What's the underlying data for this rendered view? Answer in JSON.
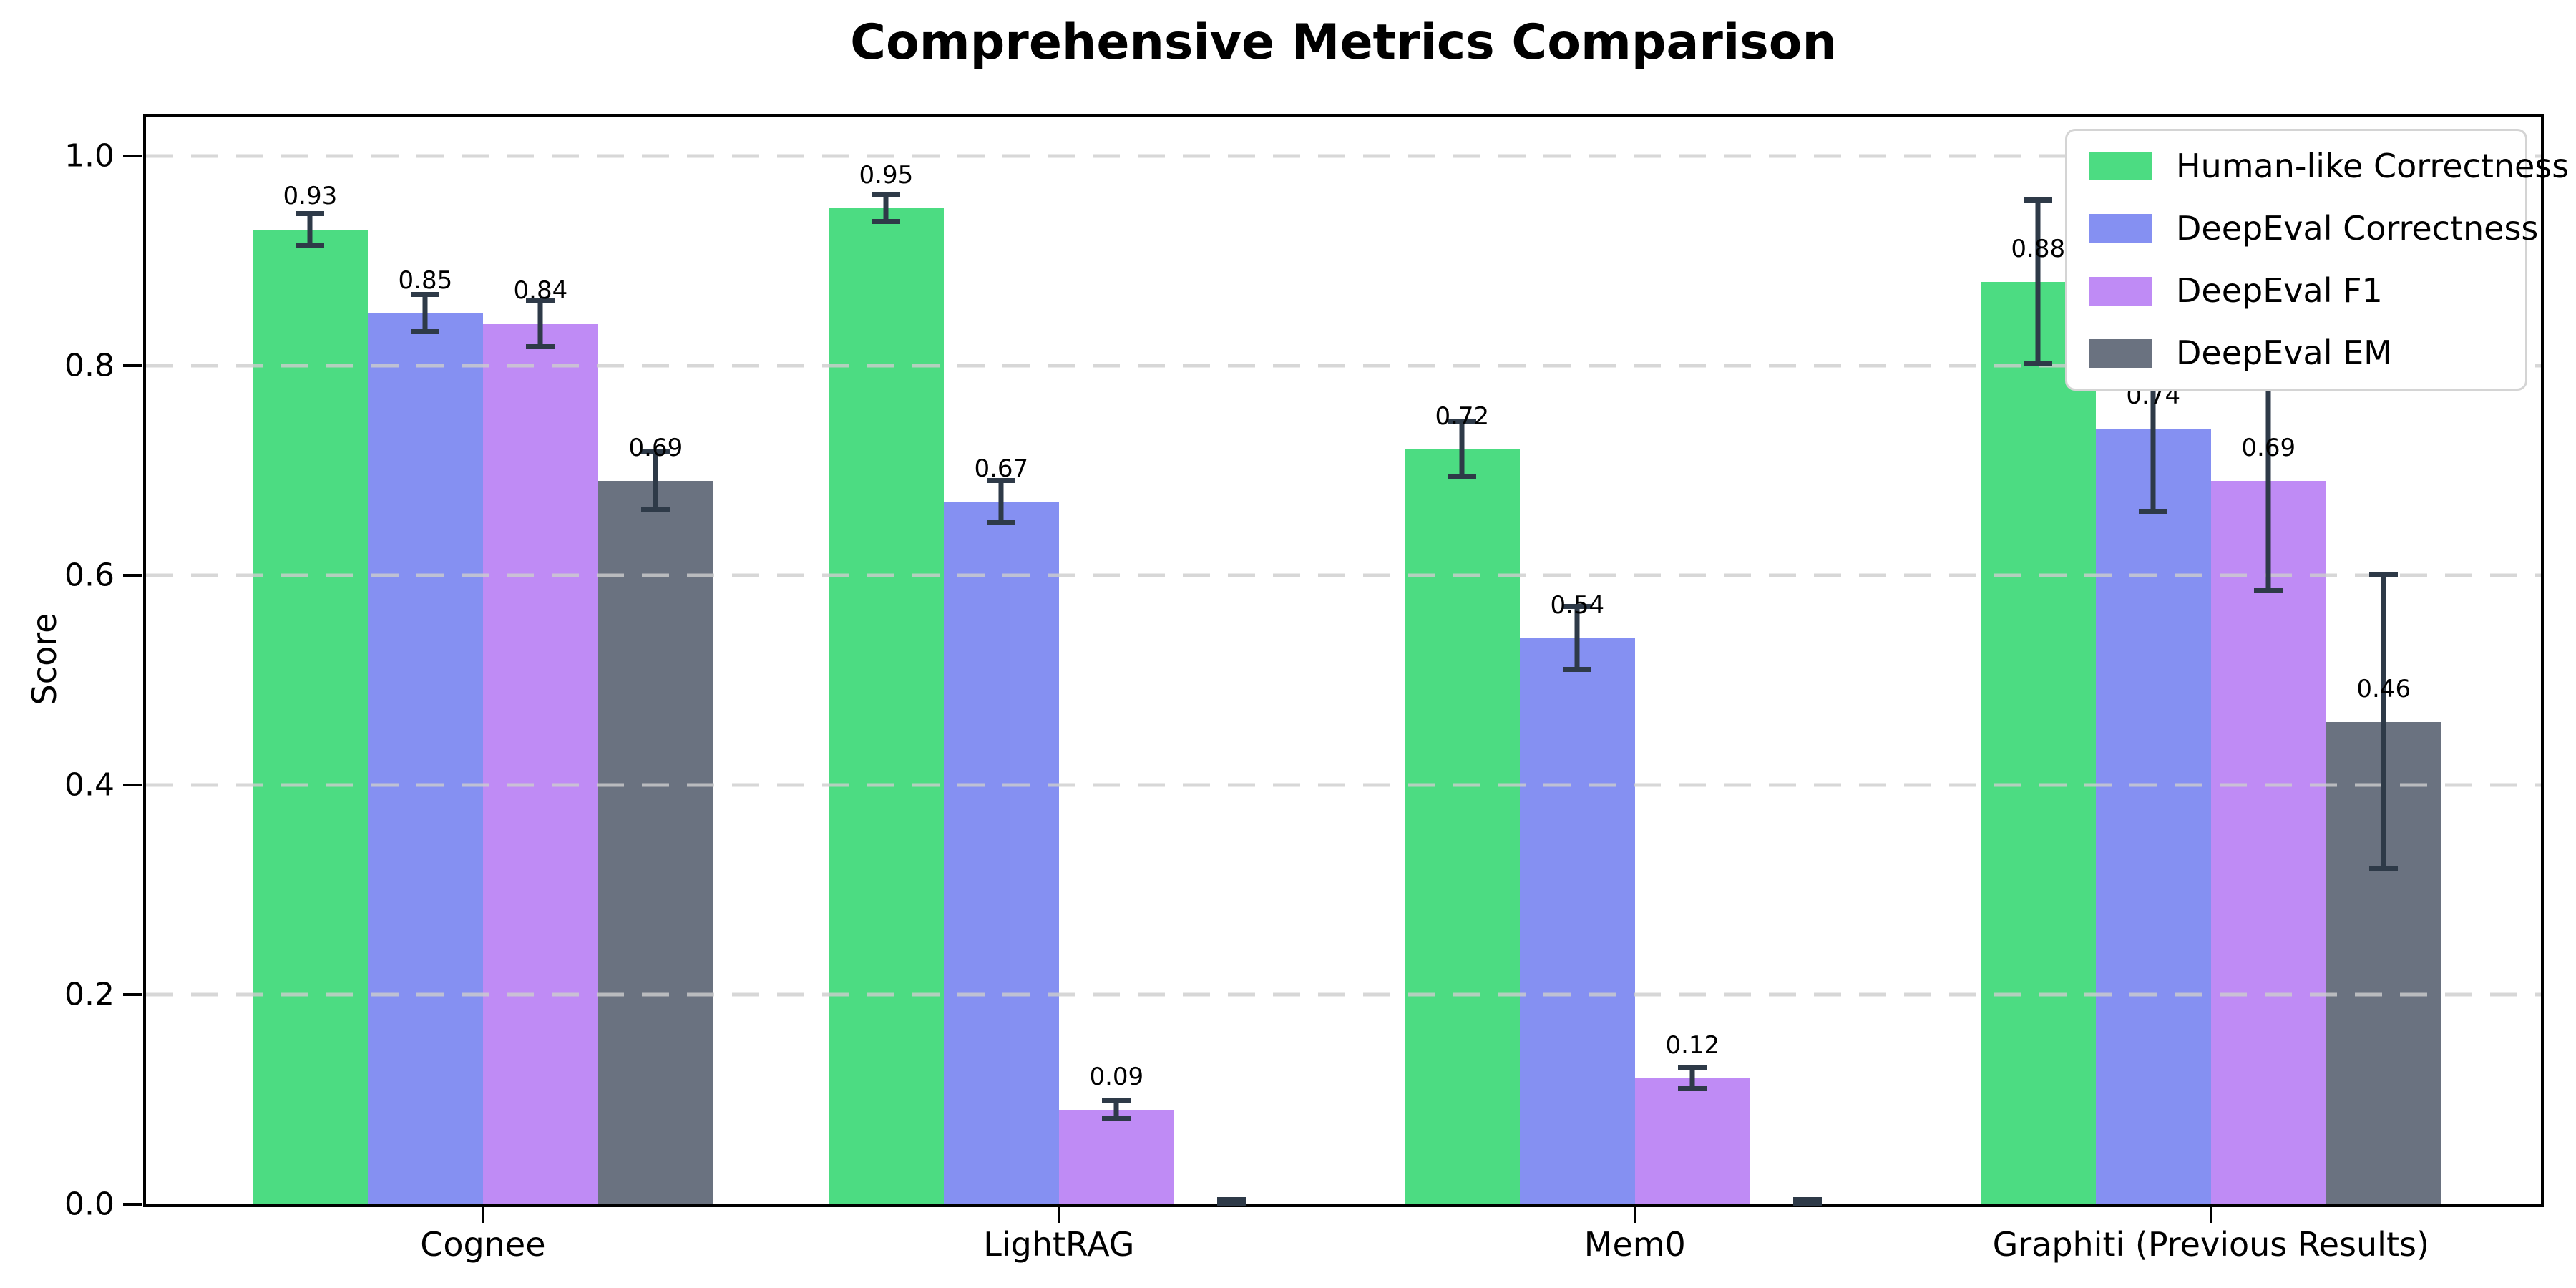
{
  "title": "Comprehensive Metrics Comparison",
  "axes": {
    "ylabel": "Score"
  },
  "chart_data": {
    "type": "bar",
    "title": "Comprehensive Metrics Comparison",
    "xlabel": "",
    "ylabel": "Score",
    "categories": [
      "Cognee",
      "LightRAG",
      "Mem0",
      "Graphiti (Previous Results)"
    ],
    "series": [
      {
        "name": "Human-like Correctness",
        "color": "#4cdc82",
        "values": [
          0.93,
          0.95,
          0.72,
          0.88
        ],
        "errors": [
          0.015,
          0.013,
          0.026,
          0.078
        ],
        "labels": [
          "0.93",
          "0.95",
          "0.72",
          "0.88"
        ]
      },
      {
        "name": "DeepEval Correctness",
        "color": "#8590f2",
        "values": [
          0.85,
          0.67,
          0.54,
          0.74
        ],
        "errors": [
          0.018,
          0.02,
          0.03,
          0.08
        ],
        "labels": [
          "0.85",
          "0.67",
          "0.54",
          "0.74"
        ]
      },
      {
        "name": "DeepEval F1",
        "color": "#bf8bf5",
        "values": [
          0.84,
          0.09,
          0.12,
          0.69
        ],
        "errors": [
          0.022,
          0.008,
          0.01,
          0.105
        ],
        "labels": [
          "0.84",
          "0.09",
          "0.12",
          "0.69"
        ]
      },
      {
        "name": "DeepEval EM",
        "color": "#6a7280",
        "values": [
          0.69,
          0.0,
          0.0,
          0.46
        ],
        "errors": [
          0.028,
          0.004,
          0.004,
          0.14
        ],
        "labels": [
          "0.69",
          "",
          "",
          "0.46"
        ]
      }
    ],
    "yticks": [
      "0.0",
      "0.2",
      "0.4",
      "0.6",
      "0.8",
      "1.0"
    ],
    "ylim": [
      0.0,
      1.037
    ],
    "grid": "horizontal-dashed",
    "legend_position": "upper-right",
    "error_bars": true
  },
  "colors": {
    "error_bar": "#2e3a48",
    "grid": "#cdcdcd",
    "spine": "#000000",
    "background": "#ffffff",
    "text": "#000000",
    "legend_border": "#d4d4d4"
  }
}
